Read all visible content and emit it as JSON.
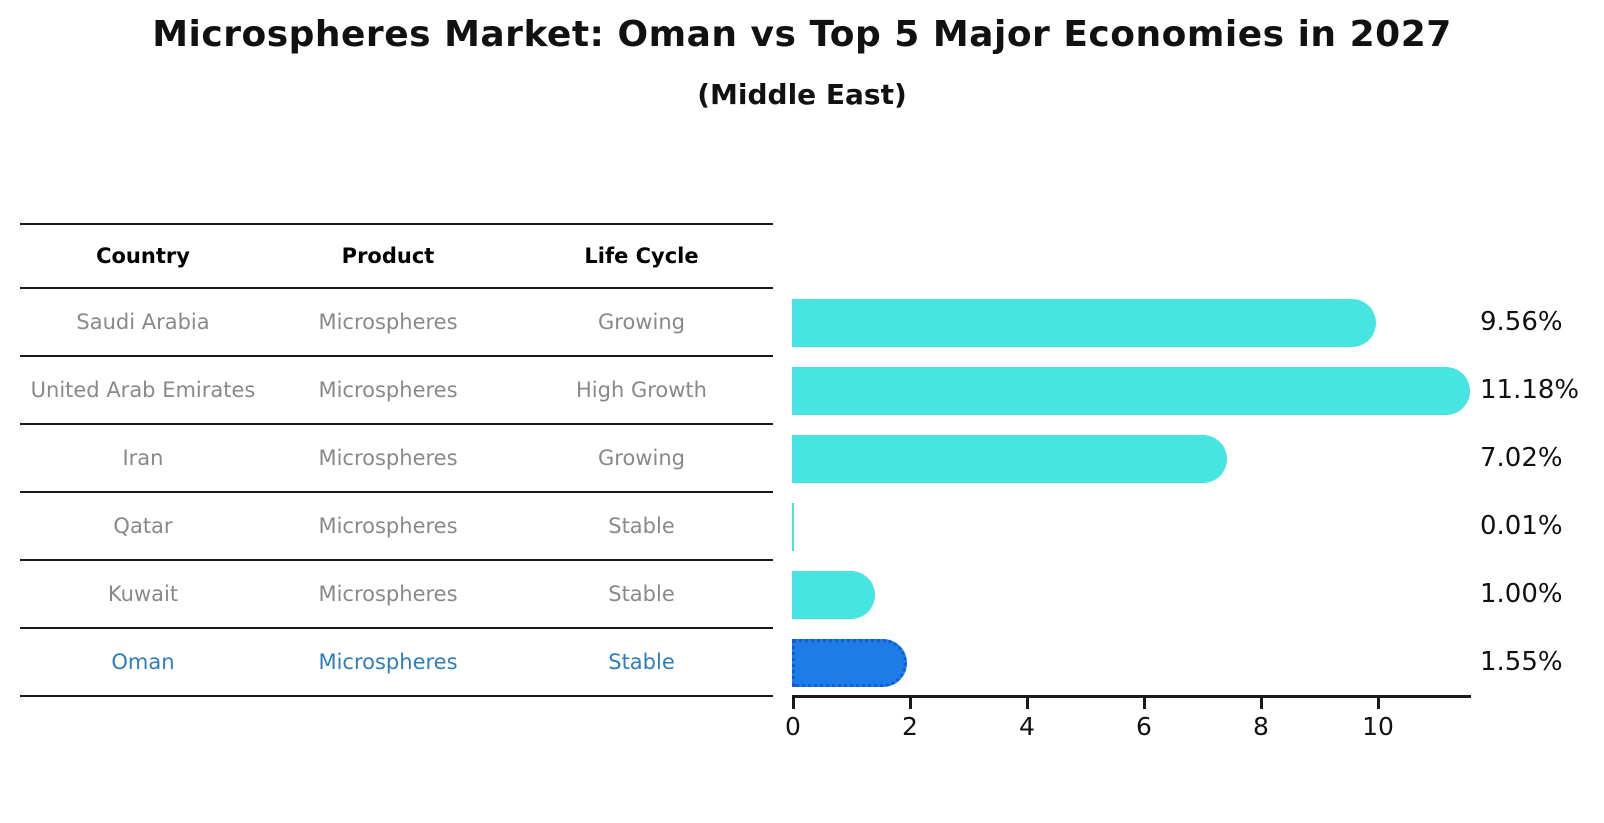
{
  "title": "Microspheres Market: Oman vs Top 5 Major Economies in 2027",
  "subtitle": "(Middle East)",
  "table": {
    "headers": [
      "Country",
      "Product",
      "Life Cycle"
    ],
    "rows": [
      {
        "country": "Saudi Arabia",
        "product": "Microspheres",
        "life_cycle": "Growing",
        "highlight": false
      },
      {
        "country": "United Arab Emirates",
        "product": "Microspheres",
        "life_cycle": "High Growth",
        "highlight": false
      },
      {
        "country": "Iran",
        "product": "Microspheres",
        "life_cycle": "Growing",
        "highlight": false
      },
      {
        "country": "Qatar",
        "product": "Microspheres",
        "life_cycle": "Stable",
        "highlight": false
      },
      {
        "country": "Kuwait",
        "product": "Microspheres",
        "life_cycle": "Stable",
        "highlight": false
      },
      {
        "country": "Oman",
        "product": "Microspheres",
        "life_cycle": "Stable",
        "highlight": true
      }
    ]
  },
  "chart_data": {
    "type": "bar",
    "orientation": "horizontal",
    "title": "Microspheres Market: Oman vs Top 5 Major Economies in 2027",
    "subtitle": "(Middle East)",
    "categories": [
      "Saudi Arabia",
      "United Arab Emirates",
      "Iran",
      "Qatar",
      "Kuwait",
      "Oman"
    ],
    "values": [
      9.56,
      11.18,
      7.02,
      0.01,
      1.0,
      1.55
    ],
    "value_labels": [
      "9.56%",
      "11.18%",
      "7.02%",
      "0.01%",
      "1.00%",
      "1.55%"
    ],
    "x_ticks": [
      0,
      2,
      4,
      6,
      8,
      10
    ],
    "xlim": [
      0,
      11.6
    ],
    "grid": false,
    "legend": false,
    "highlight_index": 5,
    "colors": {
      "bar": "#46e5e1",
      "highlight_bar": "#1e7ce8",
      "highlight_border": "#0d5ed2",
      "highlight_text": "#2e7dbf",
      "text": "#111111",
      "row_text": "#898989"
    }
  }
}
